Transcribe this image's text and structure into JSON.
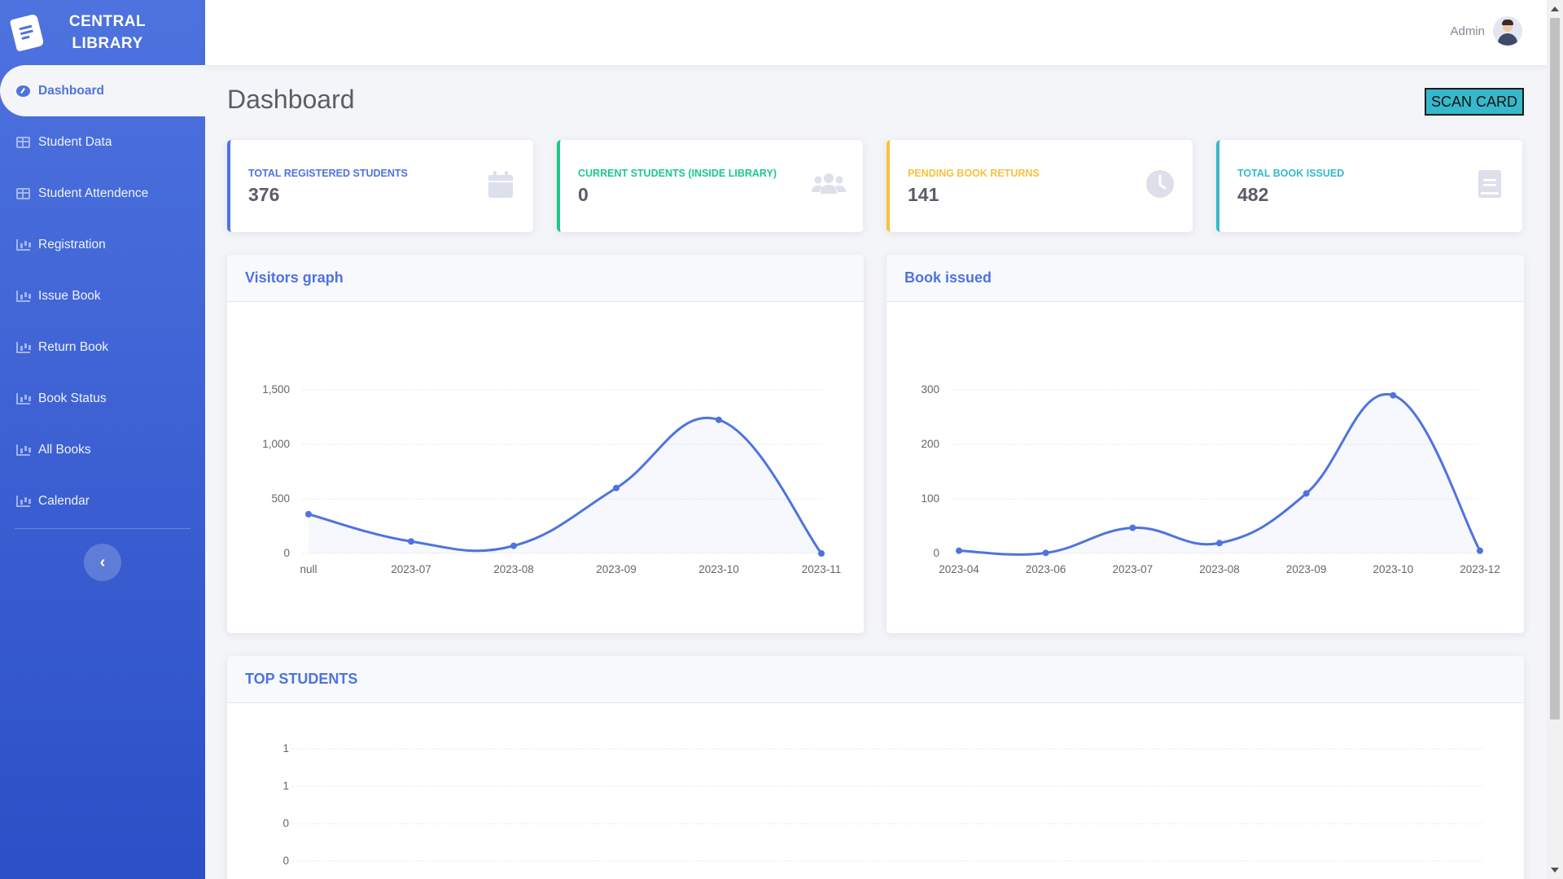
{
  "brand": {
    "line1": "CENTRAL",
    "line2": "LIBRARY"
  },
  "sidebar": {
    "items": [
      {
        "label": "Dashboard",
        "icon": "dashboard-icon",
        "active": true
      },
      {
        "label": "Student Data",
        "icon": "table-icon"
      },
      {
        "label": "Student Attendence",
        "icon": "table-icon"
      },
      {
        "label": "Registration",
        "icon": "chart-icon"
      },
      {
        "label": "Issue Book",
        "icon": "chart-icon"
      },
      {
        "label": "Return Book",
        "icon": "chart-icon"
      },
      {
        "label": "Book Status",
        "icon": "chart-icon"
      },
      {
        "label": "All Books",
        "icon": "chart-icon"
      },
      {
        "label": "Calendar",
        "icon": "chart-icon"
      }
    ],
    "toggle_glyph": "‹"
  },
  "topbar": {
    "user_name": "Admin"
  },
  "page": {
    "title": "Dashboard",
    "scan_button": "SCAN CARD"
  },
  "stats": [
    {
      "label": "TOTAL REGISTERED STUDENTS",
      "value": "376",
      "icon": "calendar-icon",
      "color": "#4e73df"
    },
    {
      "label": "CURRENT STUDENTS (INSIDE LIBRARY)",
      "value": "0",
      "icon": "users-icon",
      "color": "#1cc88a"
    },
    {
      "label": "PENDING BOOK RETURNS",
      "value": "141",
      "icon": "clock-icon",
      "color": "#f6c23e"
    },
    {
      "label": "TOTAL BOOK ISSUED",
      "value": "482",
      "icon": "book-icon",
      "color": "#36b9cc"
    }
  ],
  "cards": {
    "visitors_title": "Visitors graph",
    "books_title": "Book issued",
    "top_title": "TOP STUDENTS"
  },
  "chart_data": [
    {
      "type": "line",
      "title": "Visitors graph",
      "categories": [
        "null",
        "2023-07",
        "2023-08",
        "2023-09",
        "2023-10",
        "2023-11"
      ],
      "values": [
        360,
        110,
        70,
        600,
        1225,
        0
      ],
      "yticks": [
        "0",
        "500",
        "1,000",
        "1,500"
      ],
      "ylim": [
        0,
        1500
      ],
      "grid": true,
      "color": "#4e73df"
    },
    {
      "type": "line",
      "title": "Book issued",
      "categories": [
        "2023-04",
        "2023-06",
        "2023-07",
        "2023-08",
        "2023-09",
        "2023-10",
        "2023-12"
      ],
      "values": [
        5,
        1,
        47,
        19,
        110,
        290,
        5
      ],
      "yticks": [
        "0",
        "100",
        "200",
        "300"
      ],
      "ylim": [
        0,
        300
      ],
      "grid": true,
      "color": "#4e73df"
    },
    {
      "type": "bar",
      "title": "TOP STUDENTS",
      "categories": [],
      "values": [],
      "yticks": [
        "1",
        "1",
        "0",
        "0"
      ],
      "grid": true
    }
  ]
}
